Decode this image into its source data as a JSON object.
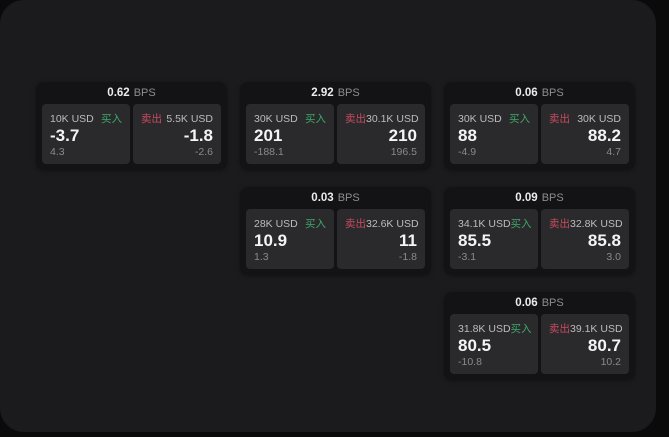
{
  "labels": {
    "bps_unit": "BPS",
    "buy": "买入",
    "sell": "卖出"
  },
  "colors": {
    "buy": "#3fa76a",
    "sell": "#c84a5e",
    "page_bg": "#1b1b1d",
    "card_bg": "#131315",
    "panel_bg": "#2a2a2c"
  },
  "cards": [
    {
      "bps": "0.62",
      "buy": {
        "amount": "10K USD",
        "value": "-3.7",
        "sub": "4.3"
      },
      "sell": {
        "amount": "5.5K USD",
        "value": "-1.8",
        "sub": "-2.6"
      }
    },
    {
      "bps": "2.92",
      "buy": {
        "amount": "30K USD",
        "value": "201",
        "sub": "-188.1"
      },
      "sell": {
        "amount": "30.1K USD",
        "value": "210",
        "sub": "196.5"
      }
    },
    {
      "bps": "0.06",
      "buy": {
        "amount": "30K USD",
        "value": "88",
        "sub": "-4.9"
      },
      "sell": {
        "amount": "30K USD",
        "value": "88.2",
        "sub": "4.7"
      }
    },
    {
      "bps": "0.03",
      "buy": {
        "amount": "28K USD",
        "value": "10.9",
        "sub": "1.3"
      },
      "sell": {
        "amount": "32.6K USD",
        "value": "11",
        "sub": "-1.8"
      }
    },
    {
      "bps": "0.09",
      "buy": {
        "amount": "34.1K USD",
        "value": "85.5",
        "sub": "-3.1"
      },
      "sell": {
        "amount": "32.8K USD",
        "value": "85.8",
        "sub": "3.0"
      }
    },
    {
      "bps": "0.06",
      "buy": {
        "amount": "31.8K USD",
        "value": "80.5",
        "sub": "-10.8"
      },
      "sell": {
        "amount": "39.1K USD",
        "value": "80.7",
        "sub": "10.2"
      }
    }
  ]
}
